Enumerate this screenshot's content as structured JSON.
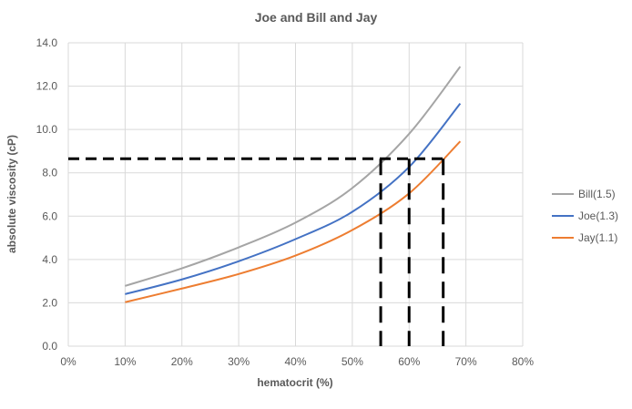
{
  "chart_data": {
    "type": "line",
    "title": "Joe and Bill and Jay",
    "xlabel": "hematocrit (%)",
    "ylabel": "absolute viscosity (cP)",
    "xlim": [
      0,
      80
    ],
    "ylim": [
      0,
      14
    ],
    "x_ticks": [
      0,
      10,
      20,
      30,
      40,
      50,
      60,
      70,
      80
    ],
    "x_tick_labels": [
      "0%",
      "10%",
      "20%",
      "30%",
      "40%",
      "50%",
      "60%",
      "70%",
      "80%"
    ],
    "y_ticks": [
      0,
      2,
      4,
      6,
      8,
      10,
      12,
      14
    ],
    "y_tick_labels": [
      "0.0",
      "2.0",
      "4.0",
      "6.0",
      "8.0",
      "10.0",
      "12.0",
      "14.0"
    ],
    "grid": true,
    "legend_position": "right",
    "x": [
      10,
      20,
      30,
      40,
      50,
      60,
      69
    ],
    "series": [
      {
        "name": "Bill(1.5)",
        "color": "#a5a5a5",
        "values": [
          2.78,
          3.59,
          4.56,
          5.7,
          7.3,
          9.8,
          12.9
        ]
      },
      {
        "name": "Joe(1.3)",
        "color": "#4472c4",
        "values": [
          2.4,
          3.08,
          3.92,
          4.94,
          6.2,
          8.27,
          11.2
        ]
      },
      {
        "name": "Jay(1.1)",
        "color": "#ed7d31",
        "values": [
          2.03,
          2.66,
          3.33,
          4.18,
          5.36,
          7.05,
          9.45
        ]
      }
    ],
    "annotations": {
      "dashed_hline": {
        "y": 8.65,
        "x_from": 0,
        "x_to": 66
      },
      "dashed_vlines": [
        55,
        60,
        66
      ]
    }
  }
}
